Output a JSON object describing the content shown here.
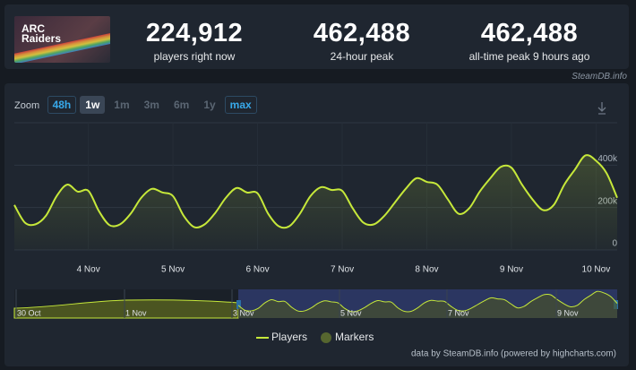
{
  "header": {
    "logo": [
      "ARC",
      "Raiders"
    ],
    "stats": [
      {
        "value": "224,912",
        "label": "players right now"
      },
      {
        "value": "462,488",
        "label": "24-hour peak"
      },
      {
        "value": "462,488",
        "label": "all-time peak 9 hours ago"
      }
    ],
    "source": "SteamDB.info"
  },
  "zoom": {
    "label": "Zoom",
    "buttons": [
      "48h",
      "1w",
      "1m",
      "3m",
      "6m",
      "1y",
      "max"
    ],
    "active": "1w"
  },
  "chart_data": {
    "type": "line",
    "categories": [
      null,
      null,
      null,
      null,
      null,
      null,
      null,
      "4 Nov",
      null,
      null,
      null,
      null,
      null,
      null,
      null,
      "5 Nov",
      null,
      null,
      null,
      null,
      null,
      null,
      null,
      "6 Nov",
      null,
      null,
      null,
      null,
      null,
      null,
      null,
      "7 Nov",
      null,
      null,
      null,
      null,
      null,
      null,
      null,
      "8 Nov",
      null,
      null,
      null,
      null,
      null,
      null,
      null,
      "9 Nov",
      null,
      null,
      null,
      null,
      null,
      null,
      null,
      "10 Nov",
      null,
      null
    ],
    "series": [
      {
        "name": "Players",
        "color": "#c6e83a",
        "values": [
          212000,
          129000,
          121000,
          162000,
          254000,
          308000,
          275000,
          279000,
          183000,
          117000,
          121000,
          171000,
          246000,
          288000,
          271000,
          254000,
          162000,
          108000,
          121000,
          175000,
          246000,
          292000,
          271000,
          267000,
          171000,
          112000,
          112000,
          171000,
          254000,
          296000,
          283000,
          279000,
          196000,
          129000,
          121000,
          162000,
          225000,
          288000,
          338000,
          321000,
          308000,
          238000,
          171000,
          196000,
          275000,
          338000,
          392000,
          388000,
          308000,
          238000,
          188000,
          212000,
          308000,
          379000,
          446000,
          421000,
          362000,
          246000
        ]
      }
    ],
    "markers": {
      "name": "Markers",
      "color": "#56662f"
    },
    "ylim": [
      0,
      600000
    ],
    "yticks": [
      {
        "value": 0,
        "label": "0"
      },
      {
        "value": 200000,
        "label": "200k"
      },
      {
        "value": 400000,
        "label": "400k"
      }
    ],
    "grid": true,
    "navigator_labels": [
      "30 Oct",
      "1 Nov",
      "3 Nov",
      "5 Nov",
      "7 Nov",
      "9 Nov"
    ],
    "credit": "data by SteamDB.info (powered by highcharts.com)"
  }
}
